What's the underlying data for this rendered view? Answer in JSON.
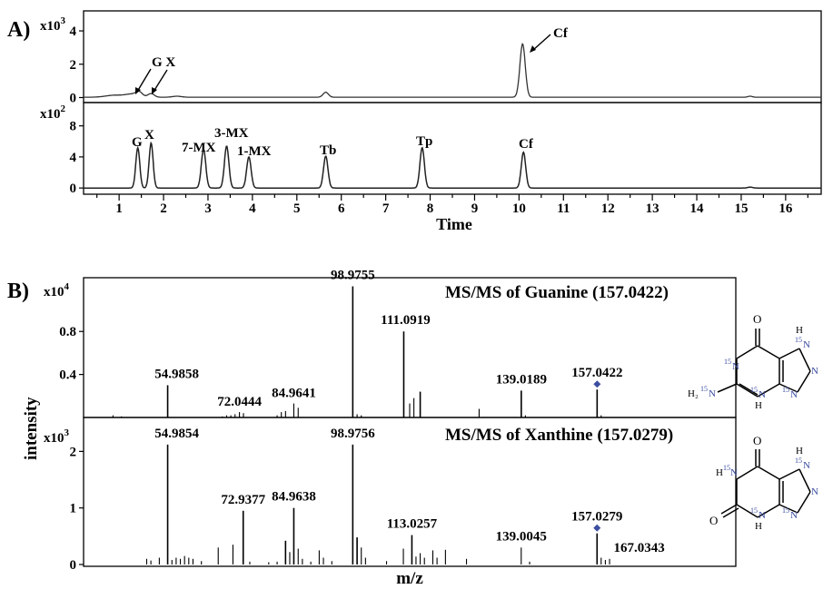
{
  "panel_a": {
    "label": "A)",
    "top_trace": {
      "y_multiplier_base": "x10",
      "y_multiplier_exp": "3",
      "y_ticks": [
        "0",
        "2",
        "4"
      ],
      "annotations": [
        {
          "text": "G X",
          "x": 1.65
        },
        {
          "text": "Cf",
          "x": 10.05
        }
      ]
    },
    "bottom_trace": {
      "y_multiplier_base": "x10",
      "y_multiplier_exp": "2",
      "y_ticks": [
        "0",
        "4",
        "8"
      ],
      "peak_labels": [
        {
          "text": "G",
          "x": 1.42
        },
        {
          "text": "X",
          "x": 1.72
        },
        {
          "text": "7-MX",
          "x": 2.88
        },
        {
          "text": "3-MX",
          "x": 3.42
        },
        {
          "text": "1-MX",
          "x": 3.92
        },
        {
          "text": "Tb",
          "x": 5.65
        },
        {
          "text": "Tp",
          "x": 7.82
        },
        {
          "text": "Cf",
          "x": 10.1
        }
      ]
    },
    "x_ticks": [
      "1",
      "2",
      "3",
      "4",
      "5",
      "6",
      "7",
      "8",
      "9",
      "10",
      "11",
      "12",
      "13",
      "14",
      "15",
      "16"
    ],
    "x_label": "Time"
  },
  "panel_b": {
    "label": "B)",
    "y_label": "intensity",
    "x_label": "m/z",
    "top_spectrum": {
      "title": "MS/MS of Guanine (157.0422)",
      "y_multiplier_base": "x10",
      "y_multiplier_exp": "4",
      "y_ticks": [
        "0.4",
        "0.8"
      ],
      "peak_labels": [
        "54.9858",
        "72.0444",
        "84.9641",
        "98.9755",
        "111.0919",
        "139.0189",
        "157.0422"
      ]
    },
    "bottom_spectrum": {
      "title": "MS/MS of Xanthine (157.0279)",
      "y_multiplier_base": "x10",
      "y_multiplier_exp": "3",
      "y_ticks": [
        "0",
        "1",
        "2"
      ],
      "peak_labels": [
        "54.9854",
        "72.9377",
        "84.9638",
        "98.9756",
        "113.0257",
        "139.0045",
        "157.0279",
        "167.0343"
      ]
    },
    "structures": {
      "guanine": [
        "O",
        "15",
        "N",
        "H",
        "H₂",
        "15",
        "N",
        "15",
        "N",
        "15",
        "N",
        "H",
        "15",
        "N",
        "N"
      ],
      "xanthine": [
        "O",
        "H",
        "15",
        "N",
        "H",
        "15",
        "N",
        "O",
        "N",
        "15",
        "N",
        "H",
        "15",
        "N"
      ]
    }
  },
  "colors": {
    "axis": "#000000",
    "trace": "#333333",
    "marker": "#3c4ea0",
    "label_isotope": "#3a4ba0"
  },
  "chart_data": [
    {
      "type": "line",
      "title": "",
      "xlabel": "Time",
      "ylabel": "",
      "y_scale": "x10^3",
      "xlim": [
        0.2,
        16.8
      ],
      "ylim": [
        -0.3,
        5.2
      ],
      "series": [
        {
          "peaks": [
            {
              "x": 0.9,
              "y": 0.12,
              "w": 0.2
            },
            {
              "x": 1.3,
              "y": 0.18,
              "w": 0.15
            },
            {
              "x": 1.45,
              "y": 0.25,
              "w": 0.07
            },
            {
              "x": 1.72,
              "y": 0.22,
              "w": 0.07
            },
            {
              "x": 2.3,
              "y": 0.06,
              "w": 0.1
            },
            {
              "x": 5.65,
              "y": 0.3,
              "w": 0.06
            },
            {
              "x": 10.08,
              "y": 3.2,
              "w": 0.06
            },
            {
              "x": 15.2,
              "y": 0.06,
              "w": 0.05
            }
          ],
          "baseline": 0.02
        }
      ]
    },
    {
      "type": "line",
      "title": "",
      "xlabel": "Time",
      "ylabel": "",
      "y_scale": "x10^2",
      "xlim": [
        0.2,
        16.8
      ],
      "ylim": [
        -0.8,
        11
      ],
      "series": [
        {
          "peaks": [
            {
              "x": 1.42,
              "y": 5.2,
              "w": 0.045
            },
            {
              "x": 1.72,
              "y": 5.8,
              "w": 0.045
            },
            {
              "x": 2.9,
              "y": 5.0,
              "w": 0.05
            },
            {
              "x": 3.42,
              "y": 5.4,
              "w": 0.05
            },
            {
              "x": 3.92,
              "y": 4.0,
              "w": 0.05
            },
            {
              "x": 5.65,
              "y": 4.1,
              "w": 0.05
            },
            {
              "x": 7.82,
              "y": 5.2,
              "w": 0.05
            },
            {
              "x": 10.1,
              "y": 4.6,
              "w": 0.05
            },
            {
              "x": 15.2,
              "y": 0.12,
              "w": 0.05
            }
          ],
          "baseline": 0.0
        }
      ]
    },
    {
      "type": "bar",
      "title": "MS/MS of Guanine (157.0422)",
      "xlabel": "m/z",
      "ylabel": "intensity",
      "y_scale": "x10^4",
      "xlim": [
        35,
        190
      ],
      "ylim": [
        0,
        1.3
      ],
      "peaks": [
        {
          "mz": 42.0,
          "y": 0.02
        },
        {
          "mz": 44.0,
          "y": 0.01
        },
        {
          "mz": 54.9858,
          "y": 0.3,
          "label": "54.9858"
        },
        {
          "mz": 68.0,
          "y": 0.01
        },
        {
          "mz": 69.0,
          "y": 0.02
        },
        {
          "mz": 70.0,
          "y": 0.02
        },
        {
          "mz": 71.0,
          "y": 0.03
        },
        {
          "mz": 72.0444,
          "y": 0.05,
          "label": "72.0444"
        },
        {
          "mz": 73.0,
          "y": 0.04
        },
        {
          "mz": 81.0,
          "y": 0.02
        },
        {
          "mz": 82.0,
          "y": 0.05
        },
        {
          "mz": 83.0,
          "y": 0.06
        },
        {
          "mz": 84.9641,
          "y": 0.13,
          "label": "84.9641"
        },
        {
          "mz": 86.0,
          "y": 0.09
        },
        {
          "mz": 98.9755,
          "y": 1.22,
          "label": "98.9755"
        },
        {
          "mz": 100.0,
          "y": 0.03
        },
        {
          "mz": 101.0,
          "y": 0.02
        },
        {
          "mz": 111.0919,
          "y": 0.8,
          "label": "111.0919"
        },
        {
          "mz": 112.5,
          "y": 0.13
        },
        {
          "mz": 113.5,
          "y": 0.18
        },
        {
          "mz": 115.0,
          "y": 0.24
        },
        {
          "mz": 129.0,
          "y": 0.08
        },
        {
          "mz": 139.0189,
          "y": 0.25,
          "label": "139.0189"
        },
        {
          "mz": 140.0,
          "y": 0.02
        },
        {
          "mz": 157.0422,
          "y": 0.26,
          "label": "157.0422",
          "marker": true
        },
        {
          "mz": 158.0,
          "y": 0.02
        }
      ]
    },
    {
      "type": "bar",
      "title": "MS/MS of Xanthine (157.0279)",
      "xlabel": "m/z",
      "ylabel": "intensity",
      "y_scale": "x10^3",
      "xlim": [
        35,
        190
      ],
      "ylim": [
        0,
        2.6
      ],
      "peaks": [
        {
          "mz": 50.0,
          "y": 0.1
        },
        {
          "mz": 51.0,
          "y": 0.07
        },
        {
          "mz": 53.0,
          "y": 0.12
        },
        {
          "mz": 54.9854,
          "y": 2.12,
          "label": "54.9854"
        },
        {
          "mz": 56.0,
          "y": 0.08
        },
        {
          "mz": 57.0,
          "y": 0.12
        },
        {
          "mz": 58.0,
          "y": 0.1
        },
        {
          "mz": 59.0,
          "y": 0.15
        },
        {
          "mz": 60.0,
          "y": 0.12
        },
        {
          "mz": 61.0,
          "y": 0.1
        },
        {
          "mz": 63.0,
          "y": 0.06
        },
        {
          "mz": 67.0,
          "y": 0.3
        },
        {
          "mz": 70.5,
          "y": 0.35
        },
        {
          "mz": 72.9377,
          "y": 0.95,
          "label": "72.9377"
        },
        {
          "mz": 74.5,
          "y": 0.05
        },
        {
          "mz": 79.0,
          "y": 0.04
        },
        {
          "mz": 81.0,
          "y": 0.05
        },
        {
          "mz": 83.0,
          "y": 0.42
        },
        {
          "mz": 84.0,
          "y": 0.22
        },
        {
          "mz": 84.9638,
          "y": 1.0,
          "label": "84.9638"
        },
        {
          "mz": 86.0,
          "y": 0.28
        },
        {
          "mz": 87.0,
          "y": 0.1
        },
        {
          "mz": 89.0,
          "y": 0.05
        },
        {
          "mz": 91.0,
          "y": 0.25
        },
        {
          "mz": 92.0,
          "y": 0.12
        },
        {
          "mz": 94.0,
          "y": 0.06
        },
        {
          "mz": 98.9756,
          "y": 2.12,
          "label": "98.9756"
        },
        {
          "mz": 100.0,
          "y": 0.48
        },
        {
          "mz": 101.0,
          "y": 0.3
        },
        {
          "mz": 102.0,
          "y": 0.12
        },
        {
          "mz": 107.0,
          "y": 0.06
        },
        {
          "mz": 111.0,
          "y": 0.28
        },
        {
          "mz": 113.0257,
          "y": 0.52,
          "label": "113.0257"
        },
        {
          "mz": 114.0,
          "y": 0.14
        },
        {
          "mz": 115.0,
          "y": 0.2
        },
        {
          "mz": 116.0,
          "y": 0.12
        },
        {
          "mz": 118.0,
          "y": 0.25
        },
        {
          "mz": 119.0,
          "y": 0.12
        },
        {
          "mz": 121.0,
          "y": 0.26
        },
        {
          "mz": 126.0,
          "y": 0.1
        },
        {
          "mz": 139.0045,
          "y": 0.3,
          "label": "139.0045"
        },
        {
          "mz": 141.0,
          "y": 0.05
        },
        {
          "mz": 157.0279,
          "y": 0.55,
          "label": "157.0279",
          "marker": true
        },
        {
          "mz": 158.0,
          "y": 0.12
        },
        {
          "mz": 159.0,
          "y": 0.08
        },
        {
          "mz": 160.0,
          "y": 0.1
        },
        {
          "mz": 167.0343,
          "y": 0.0,
          "label": "167.0343"
        }
      ]
    }
  ]
}
